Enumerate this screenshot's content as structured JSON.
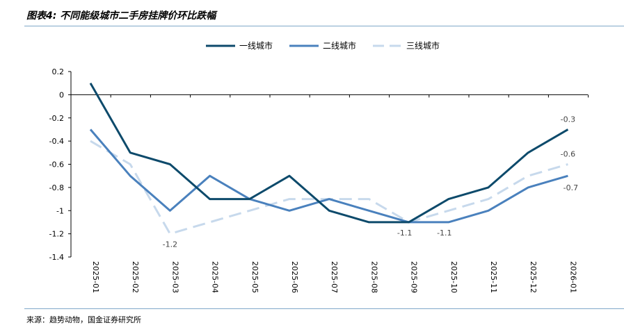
{
  "title": "图表4: 不同能级城市二手房挂牌价环比跌幅",
  "source": "来源：趋势动物，国金证券研究所",
  "chart_data": {
    "type": "line",
    "categories": [
      "2025-01",
      "2025-02",
      "2025-03",
      "2025-04",
      "2025-05",
      "2025-06",
      "2025-07",
      "2025-08",
      "2025-09",
      "2025-10",
      "2025-11",
      "2025-12",
      "2026-01"
    ],
    "ylim": [
      -1.4,
      0.2
    ],
    "yticks": [
      0.2,
      0,
      -0.2,
      -0.4,
      -0.6,
      -0.8,
      -1,
      -1.2,
      -1.4
    ],
    "ytick_labels": [
      "0.2",
      "0",
      "-0.2",
      "-0.4",
      "-0.6",
      "-0.8",
      "-1",
      "-1.2",
      "-1.4"
    ],
    "legend_position": "top-center",
    "grid": false,
    "series": [
      {
        "name": "一线城市",
        "color": "#0d4a6b",
        "dash": "solid",
        "values": [
          0.1,
          -0.5,
          -0.6,
          -0.9,
          -0.9,
          -0.7,
          -1.0,
          -1.1,
          -1.1,
          -0.9,
          -0.8,
          -0.5,
          -0.3
        ]
      },
      {
        "name": "二线城市",
        "color": "#4a81bd",
        "dash": "solid",
        "values": [
          -0.3,
          -0.7,
          -1.0,
          -0.7,
          -0.9,
          -1.0,
          -0.9,
          -1.0,
          -1.1,
          -1.1,
          -1.0,
          -0.8,
          -0.7
        ]
      },
      {
        "name": "三线城市",
        "color": "#c7d9ec",
        "dash": "dashed",
        "values": [
          -0.4,
          -0.6,
          -1.2,
          -1.1,
          -1.0,
          -0.9,
          -0.9,
          -0.9,
          -1.1,
          -1.0,
          -0.9,
          -0.7,
          -0.6
        ]
      }
    ],
    "annotations": [
      {
        "series": 0,
        "index": 12,
        "text": "-0.3"
      },
      {
        "series": 1,
        "index": 12,
        "text": "-0.7"
      },
      {
        "series": 2,
        "index": 12,
        "text": "-0.6"
      },
      {
        "series": 2,
        "index": 2,
        "text": "-1.2"
      },
      {
        "series": 1,
        "index": 8,
        "text": "-1.1"
      },
      {
        "series": 1,
        "index": 9,
        "text": "-1.1"
      }
    ]
  }
}
